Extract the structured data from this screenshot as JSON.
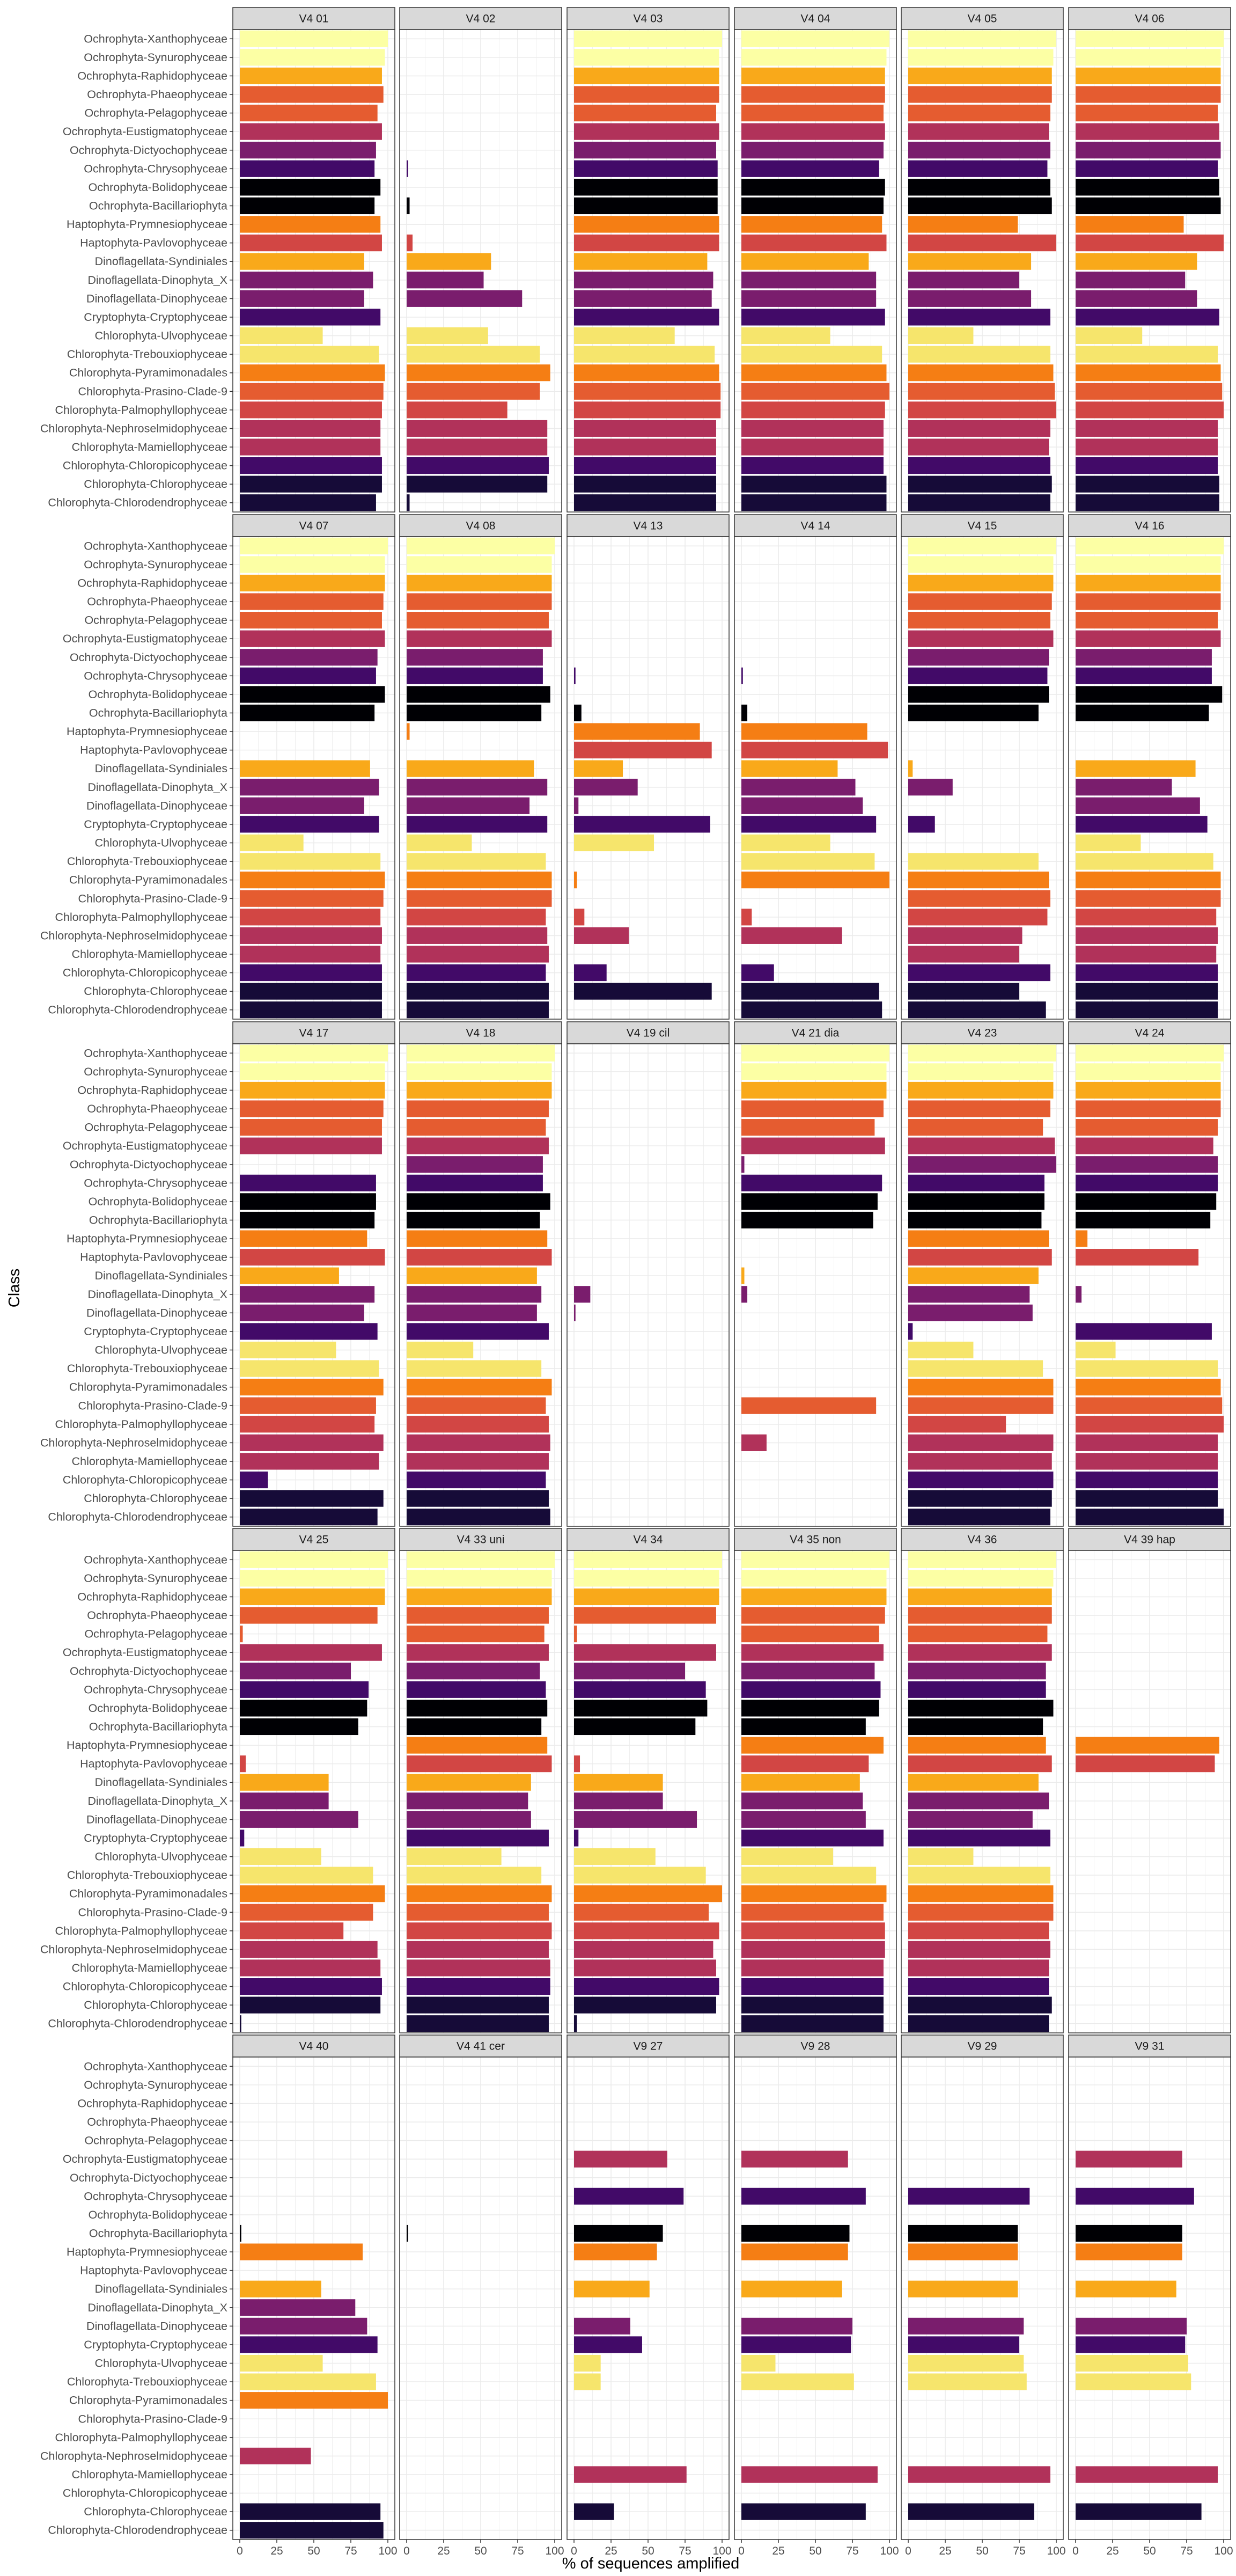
{
  "chart_data": {
    "type": "bar",
    "orientation": "horizontal",
    "xlabel": "% of sequences amplified",
    "ylabel": "Class",
    "xlim": [
      0,
      100
    ],
    "xticks": [
      "0",
      "25",
      "50",
      "75",
      "100"
    ],
    "grid": true,
    "legend": "none",
    "categories": [
      "Ochrophyta-Xanthophyceae",
      "Ochrophyta-Synurophyceae",
      "Ochrophyta-Raphidophyceae",
      "Ochrophyta-Phaeophyceae",
      "Ochrophyta-Pelagophyceae",
      "Ochrophyta-Eustigmatophyceae",
      "Ochrophyta-Dictyochophyceae",
      "Ochrophyta-Chrysophyceae",
      "Ochrophyta-Bolidophyceae",
      "Ochrophyta-Bacillariophyta",
      "Haptophyta-Prymnesiophyceae",
      "Haptophyta-Pavlovophyceae",
      "Dinoflagellata-Syndiniales",
      "Dinoflagellata-Dinophyta_X",
      "Dinoflagellata-Dinophyceae",
      "Cryptophyta-Cryptophyceae",
      "Chlorophyta-Ulvophyceae",
      "Chlorophyta-Trebouxiophyceae",
      "Chlorophyta-Pyramimonadales",
      "Chlorophyta-Prasino-Clade-9",
      "Chlorophyta-Palmophyllophyceae",
      "Chlorophyta-Nephroselmidophyceae",
      "Chlorophyta-Mamiellophyceae",
      "Chlorophyta-Chloropicophyceae",
      "Chlorophyta-Chlorophyceae",
      "Chlorophyta-Chlorodendrophyceae"
    ],
    "colors": [
      "#FCFFA4",
      "#FCFFA4",
      "#F9A91A",
      "#E55C30",
      "#E55C30",
      "#B1325A",
      "#7A1D6D",
      "#420A68",
      "#000004",
      "#000004",
      "#F57E14",
      "#D24644",
      "#F9A91A",
      "#7A1D6D",
      "#7A1D6D",
      "#420A68",
      "#F6E56C",
      "#F6E56C",
      "#F57E14",
      "#E55C30",
      "#D24644",
      "#B1325A",
      "#B1325A",
      "#420A68",
      "#160B38",
      "#160B38"
    ],
    "panels": [
      {
        "label": "V4 01",
        "values": [
          100,
          98,
          96,
          97,
          93,
          96,
          92,
          91,
          95,
          91,
          95,
          96,
          84,
          90,
          84,
          95,
          56,
          94,
          98,
          97,
          96,
          95,
          95,
          96,
          96,
          92
        ]
      },
      {
        "label": "V4 02",
        "values": [
          null,
          null,
          null,
          null,
          null,
          null,
          null,
          1,
          null,
          2,
          null,
          4,
          57,
          52,
          78,
          null,
          55,
          90,
          97,
          90,
          68,
          95,
          95,
          96,
          95,
          2
        ]
      },
      {
        "label": "V4 03",
        "values": [
          100,
          98,
          98,
          98,
          96,
          98,
          96,
          97,
          97,
          97,
          98,
          98,
          90,
          94,
          93,
          98,
          68,
          95,
          98,
          99,
          99,
          96,
          96,
          96,
          96,
          96
        ]
      },
      {
        "label": "V4 04",
        "values": [
          100,
          98,
          97,
          97,
          96,
          97,
          96,
          93,
          97,
          96,
          95,
          98,
          86,
          91,
          91,
          97,
          60,
          95,
          98,
          100,
          97,
          96,
          96,
          96,
          98,
          98
        ]
      },
      {
        "label": "V4 05",
        "values": [
          100,
          98,
          97,
          97,
          96,
          95,
          96,
          94,
          96,
          97,
          74,
          100,
          83,
          75,
          83,
          96,
          44,
          96,
          98,
          99,
          100,
          96,
          95,
          96,
          97,
          96
        ]
      },
      {
        "label": "V4 06",
        "values": [
          100,
          98,
          98,
          98,
          96,
          97,
          98,
          96,
          97,
          98,
          73,
          100,
          82,
          74,
          82,
          97,
          45,
          96,
          98,
          99,
          100,
          96,
          96,
          96,
          97,
          97
        ]
      },
      {
        "label": "V4 07",
        "values": [
          100,
          98,
          98,
          97,
          96,
          98,
          93,
          92,
          98,
          91,
          null,
          null,
          88,
          94,
          84,
          94,
          43,
          95,
          98,
          97,
          95,
          96,
          95,
          96,
          96,
          96
        ]
      },
      {
        "label": "V4 08",
        "values": [
          100,
          98,
          98,
          98,
          96,
          98,
          92,
          92,
          97,
          91,
          2,
          null,
          86,
          95,
          83,
          95,
          44,
          94,
          98,
          98,
          94,
          95,
          96,
          94,
          96,
          96
        ]
      },
      {
        "label": "V4 13",
        "values": [
          null,
          null,
          null,
          null,
          null,
          null,
          null,
          1,
          null,
          5,
          85,
          93,
          33,
          43,
          3,
          92,
          54,
          null,
          2,
          null,
          7,
          37,
          null,
          22,
          93,
          null
        ]
      },
      {
        "label": "V4 14",
        "values": [
          null,
          null,
          null,
          null,
          null,
          null,
          null,
          1,
          null,
          4,
          85,
          99,
          65,
          77,
          82,
          91,
          60,
          90,
          100,
          null,
          7,
          68,
          null,
          22,
          93,
          95
        ]
      },
      {
        "label": "V4 15",
        "values": [
          100,
          98,
          98,
          97,
          96,
          98,
          95,
          94,
          95,
          88,
          null,
          null,
          3,
          30,
          null,
          18,
          null,
          88,
          95,
          96,
          94,
          77,
          75,
          96,
          75,
          93
        ]
      },
      {
        "label": "V4 16",
        "values": [
          100,
          98,
          98,
          98,
          96,
          98,
          92,
          92,
          99,
          90,
          null,
          null,
          81,
          65,
          84,
          89,
          44,
          93,
          98,
          98,
          95,
          96,
          95,
          96,
          96,
          96
        ]
      },
      {
        "label": "V4 17",
        "values": [
          100,
          98,
          98,
          97,
          96,
          96,
          null,
          92,
          92,
          91,
          86,
          98,
          67,
          91,
          84,
          93,
          65,
          94,
          97,
          92,
          91,
          97,
          94,
          19,
          97,
          93
        ]
      },
      {
        "label": "V4 18",
        "values": [
          100,
          98,
          98,
          96,
          94,
          96,
          92,
          92,
          97,
          90,
          95,
          98,
          88,
          91,
          88,
          96,
          45,
          91,
          98,
          94,
          96,
          97,
          96,
          94,
          96,
          97
        ]
      },
      {
        "label": "V4 19 cil",
        "values": [
          null,
          null,
          null,
          null,
          null,
          null,
          null,
          null,
          null,
          null,
          null,
          null,
          null,
          11,
          1,
          null,
          null,
          null,
          null,
          null,
          null,
          null,
          null,
          null,
          null,
          null
        ]
      },
      {
        "label": "V4 21 dia",
        "values": [
          100,
          98,
          98,
          96,
          90,
          97,
          2,
          95,
          92,
          89,
          null,
          null,
          2,
          4,
          null,
          null,
          null,
          null,
          null,
          91,
          null,
          17,
          null,
          null,
          null,
          null
        ]
      },
      {
        "label": "V4 23",
        "values": [
          100,
          98,
          98,
          96,
          91,
          99,
          100,
          92,
          92,
          90,
          95,
          97,
          88,
          82,
          84,
          3,
          44,
          91,
          98,
          98,
          66,
          98,
          97,
          98,
          97,
          96
        ]
      },
      {
        "label": "V4 24",
        "values": [
          100,
          98,
          98,
          98,
          96,
          93,
          96,
          96,
          95,
          91,
          8,
          83,
          null,
          4,
          null,
          92,
          27,
          96,
          98,
          99,
          100,
          96,
          96,
          96,
          96,
          100
        ]
      },
      {
        "label": "V4 25",
        "values": [
          100,
          98,
          98,
          93,
          2,
          96,
          75,
          87,
          86,
          80,
          null,
          4,
          60,
          60,
          80,
          3,
          55,
          90,
          98,
          90,
          70,
          93,
          95,
          96,
          95,
          1
        ]
      },
      {
        "label": "V4 33 uni",
        "values": [
          100,
          98,
          98,
          96,
          93,
          96,
          90,
          94,
          95,
          91,
          95,
          98,
          84,
          82,
          84,
          96,
          64,
          91,
          98,
          96,
          98,
          96,
          97,
          97,
          96,
          96
        ]
      },
      {
        "label": "V4 34",
        "values": [
          100,
          98,
          98,
          96,
          2,
          96,
          75,
          89,
          90,
          82,
          null,
          4,
          60,
          60,
          83,
          3,
          55,
          89,
          100,
          91,
          98,
          94,
          96,
          98,
          96,
          2
        ]
      },
      {
        "label": "V4 35 non",
        "values": [
          100,
          98,
          98,
          97,
          93,
          96,
          90,
          94,
          93,
          84,
          96,
          86,
          80,
          82,
          84,
          96,
          62,
          91,
          98,
          96,
          97,
          97,
          96,
          96,
          96,
          96
        ]
      },
      {
        "label": "V4 36",
        "values": [
          100,
          98,
          97,
          97,
          94,
          97,
          93,
          93,
          98,
          91,
          93,
          97,
          88,
          95,
          84,
          96,
          44,
          96,
          98,
          98,
          95,
          96,
          95,
          95,
          97,
          95
        ]
      },
      {
        "label": "V4 39 hap",
        "values": [
          null,
          null,
          null,
          null,
          null,
          null,
          null,
          null,
          null,
          null,
          97,
          94,
          null,
          null,
          null,
          null,
          null,
          null,
          null,
          null,
          null,
          null,
          null,
          null,
          null,
          null
        ]
      },
      {
        "label": "V4 40",
        "values": [
          null,
          null,
          null,
          null,
          null,
          null,
          null,
          null,
          null,
          1,
          83,
          null,
          55,
          78,
          86,
          93,
          56,
          92,
          100,
          null,
          null,
          48,
          null,
          null,
          95,
          97
        ]
      },
      {
        "label": "V4 41 cer",
        "values": [
          null,
          null,
          null,
          null,
          null,
          null,
          null,
          null,
          null,
          1,
          null,
          null,
          null,
          null,
          null,
          null,
          null,
          null,
          null,
          null,
          null,
          null,
          null,
          null,
          null,
          null
        ]
      },
      {
        "label": "V9 27",
        "values": [
          null,
          null,
          null,
          null,
          null,
          63,
          null,
          74,
          null,
          60,
          56,
          null,
          51,
          null,
          38,
          46,
          18,
          18,
          null,
          null,
          null,
          null,
          76,
          null,
          27,
          null
        ]
      },
      {
        "label": "V9 28",
        "values": [
          null,
          null,
          null,
          null,
          null,
          72,
          null,
          84,
          null,
          73,
          72,
          null,
          68,
          null,
          75,
          74,
          23,
          76,
          null,
          null,
          null,
          null,
          92,
          null,
          84,
          null
        ]
      },
      {
        "label": "V9 29",
        "values": [
          null,
          null,
          null,
          null,
          null,
          null,
          null,
          82,
          null,
          74,
          74,
          null,
          74,
          null,
          78,
          75,
          78,
          80,
          null,
          null,
          null,
          null,
          96,
          null,
          85,
          null
        ]
      },
      {
        "label": "V9 31",
        "values": [
          null,
          null,
          null,
          null,
          null,
          72,
          null,
          80,
          null,
          72,
          72,
          null,
          68,
          null,
          75,
          74,
          76,
          78,
          null,
          null,
          null,
          null,
          96,
          null,
          85,
          null
        ]
      }
    ]
  }
}
